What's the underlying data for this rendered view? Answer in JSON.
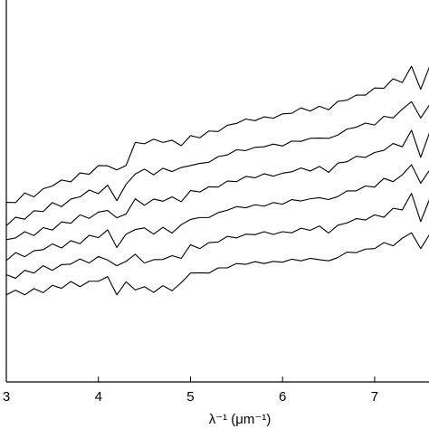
{
  "chart_data": {
    "type": "line",
    "xlabel": "λ⁻¹ (μm⁻¹)",
    "xlim": [
      3,
      7.6
    ],
    "xticks": [
      3,
      4,
      5,
      6,
      7
    ],
    "ylim": [
      0,
      14
    ],
    "x": [
      3.0,
      3.1,
      3.2,
      3.3,
      3.4,
      3.5,
      3.6,
      3.7,
      3.8,
      3.9,
      4.0,
      4.1,
      4.2,
      4.3,
      4.4,
      4.5,
      4.6,
      4.7,
      4.8,
      4.9,
      5.0,
      5.1,
      5.2,
      5.3,
      5.4,
      5.5,
      5.6,
      5.7,
      5.8,
      5.9,
      6.0,
      6.1,
      6.2,
      6.3,
      6.4,
      6.5,
      6.6,
      6.7,
      6.8,
      6.9,
      7.0,
      7.1,
      7.2,
      7.3,
      7.4,
      7.5,
      7.6
    ],
    "series": [
      {
        "color": "#000000",
        "values": [
          3.2,
          3.37,
          3.2,
          3.43,
          3.28,
          3.55,
          3.44,
          3.69,
          3.5,
          3.7,
          3.7,
          3.87,
          3.2,
          3.68,
          3.38,
          3.5,
          3.29,
          3.54,
          3.35,
          3.65,
          4.0,
          4.01,
          4.0,
          4.19,
          4.19,
          4.35,
          4.32,
          4.42,
          4.35,
          4.43,
          4.4,
          4.51,
          4.45,
          4.54,
          4.49,
          4.45,
          4.57,
          4.77,
          4.75,
          4.88,
          4.9,
          5.12,
          5.0,
          5.28,
          5.48,
          4.9,
          5.44
        ]
      },
      {
        "color": "#000000",
        "values": [
          3.94,
          3.81,
          4.1,
          4.0,
          4.27,
          4.1,
          4.31,
          4.33,
          4.52,
          4.37,
          4.61,
          4.48,
          4.27,
          4.43,
          4.69,
          4.37,
          4.49,
          4.5,
          4.64,
          4.54,
          5.04,
          4.9,
          5.12,
          5.14,
          5.35,
          5.29,
          5.43,
          5.41,
          5.52,
          5.42,
          5.52,
          5.48,
          5.65,
          5.57,
          5.73,
          5.47,
          5.76,
          5.84,
          6.0,
          5.95,
          6.14,
          6.05,
          6.38,
          6.32,
          6.93,
          5.89,
          6.75
        ]
      },
      {
        "color": "#000000",
        "values": [
          4.46,
          4.75,
          4.6,
          4.82,
          4.86,
          5.07,
          4.92,
          5.19,
          5.08,
          5.39,
          5.3,
          5.59,
          4.94,
          5.43,
          5.6,
          5.66,
          5.43,
          5.68,
          5.47,
          5.78,
          5.97,
          6.04,
          6.04,
          6.22,
          6.31,
          6.44,
          6.4,
          6.51,
          6.46,
          6.59,
          6.53,
          6.7,
          6.65,
          6.73,
          6.77,
          6.7,
          6.81,
          7.02,
          7.02,
          7.2,
          7.16,
          7.48,
          7.36,
          7.61,
          7.98,
          7.3,
          7.8
        ]
      },
      {
        "color": "#000000",
        "values": [
          5.23,
          5.29,
          5.52,
          5.38,
          5.67,
          5.58,
          5.88,
          5.83,
          6.14,
          6.01,
          6.24,
          6.3,
          6.03,
          6.17,
          6.73,
          6.49,
          6.72,
          6.64,
          6.8,
          6.62,
          7.03,
          6.98,
          7.17,
          7.16,
          7.38,
          7.36,
          7.55,
          7.5,
          7.65,
          7.56,
          7.67,
          7.72,
          7.86,
          7.75,
          7.92,
          7.7,
          8.04,
          8.09,
          8.29,
          8.25,
          8.43,
          8.51,
          8.76,
          8.64,
          9.25,
          8.25,
          9.2
        ]
      },
      {
        "color": "#000000",
        "values": [
          5.74,
          6.05,
          5.98,
          6.29,
          6.26,
          6.59,
          6.44,
          6.72,
          6.8,
          7.05,
          6.92,
          7.23,
          6.66,
          7.26,
          7.64,
          7.82,
          7.61,
          7.85,
          7.73,
          7.88,
          7.95,
          8.03,
          8.07,
          8.28,
          8.34,
          8.53,
          8.5,
          8.62,
          8.64,
          8.74,
          8.67,
          8.85,
          8.84,
          8.95,
          8.96,
          8.95,
          9.07,
          9.29,
          9.36,
          9.51,
          9.44,
          9.76,
          9.7,
          10.02,
          10.3,
          9.7,
          10.2
        ]
      },
      {
        "color": "#000000",
        "values": [
          6.6,
          6.59,
          6.94,
          6.8,
          7.1,
          7.2,
          7.42,
          7.35,
          7.68,
          7.63,
          7.95,
          7.94,
          7.79,
          7.95,
          8.8,
          8.75,
          8.92,
          8.8,
          8.88,
          8.68,
          9.05,
          8.97,
          9.22,
          9.2,
          9.43,
          9.5,
          9.66,
          9.6,
          9.74,
          9.69,
          9.85,
          9.87,
          10.07,
          9.95,
          10.13,
          10.0,
          10.31,
          10.35,
          10.54,
          10.54,
          10.8,
          10.79,
          11.14,
          11.0,
          11.6,
          10.75,
          11.62
        ]
      }
    ]
  }
}
